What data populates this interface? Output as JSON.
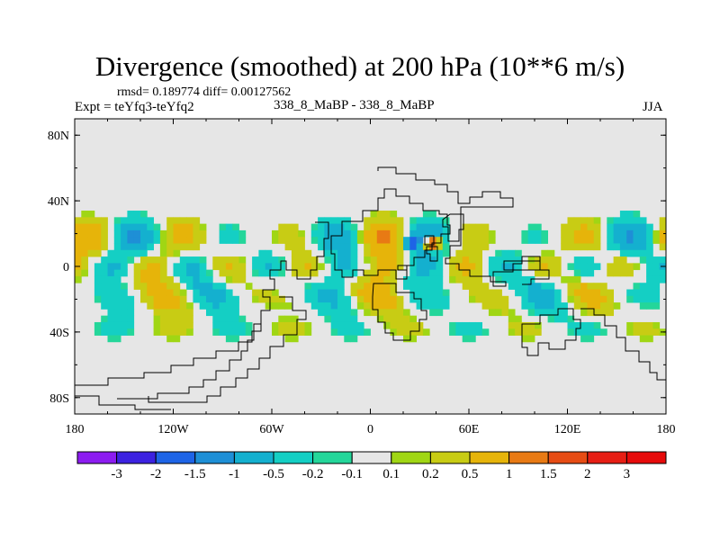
{
  "chart_data": {
    "type": "heatmap",
    "title": "Divergence (smoothed) at 200 hPa (10**6 m/s)",
    "stats_text": "rmsd= 0.189774 diff= 0.00127562",
    "experiment": "Expt = teYfq3-teYfq2",
    "runs": "338_8_MaBP - 338_8_MaBP",
    "season": "JJA",
    "x_tick_labels": [
      "180",
      "120W",
      "60W",
      "0",
      "60E",
      "120E",
      "180"
    ],
    "x_tick_values": [
      -180,
      -120,
      -60,
      0,
      60,
      120,
      180
    ],
    "y_tick_labels": [
      "80N",
      "40N",
      "0",
      "40S",
      "80S"
    ],
    "y_tick_values": [
      80,
      40,
      0,
      -40,
      -80
    ],
    "xlim": [
      -180,
      180
    ],
    "ylim": [
      -90,
      90
    ],
    "colorbar": {
      "labels": [
        "-3",
        "-2",
        "-1.5",
        "-1",
        "-0.5",
        "-0.2",
        "-0.1",
        "0.1",
        "0.2",
        "0.5",
        "1",
        "1.5",
        "2",
        "3"
      ],
      "colors": [
        "#8c1cf0",
        "#3c22e0",
        "#1e64e6",
        "#1e8fd6",
        "#14b0cf",
        "#14cfc4",
        "#24d69a",
        "#e6e6e6",
        "#a0d614",
        "#c8cc14",
        "#e6b40a",
        "#e87a14",
        "#e64c14",
        "#e61e14",
        "#e60a0a"
      ]
    },
    "background_color": "#e6e6e6",
    "features": [
      {
        "name": "band-north",
        "lat": 18,
        "amp": 0.6
      },
      {
        "name": "band-south",
        "lat": -18,
        "amp": 0.5
      },
      {
        "name": "asia-max",
        "lon": 38,
        "lat": 14,
        "value": 1.6
      },
      {
        "name": "africa-min",
        "lon": 25,
        "lat": 14,
        "value": -1.0
      }
    ]
  }
}
